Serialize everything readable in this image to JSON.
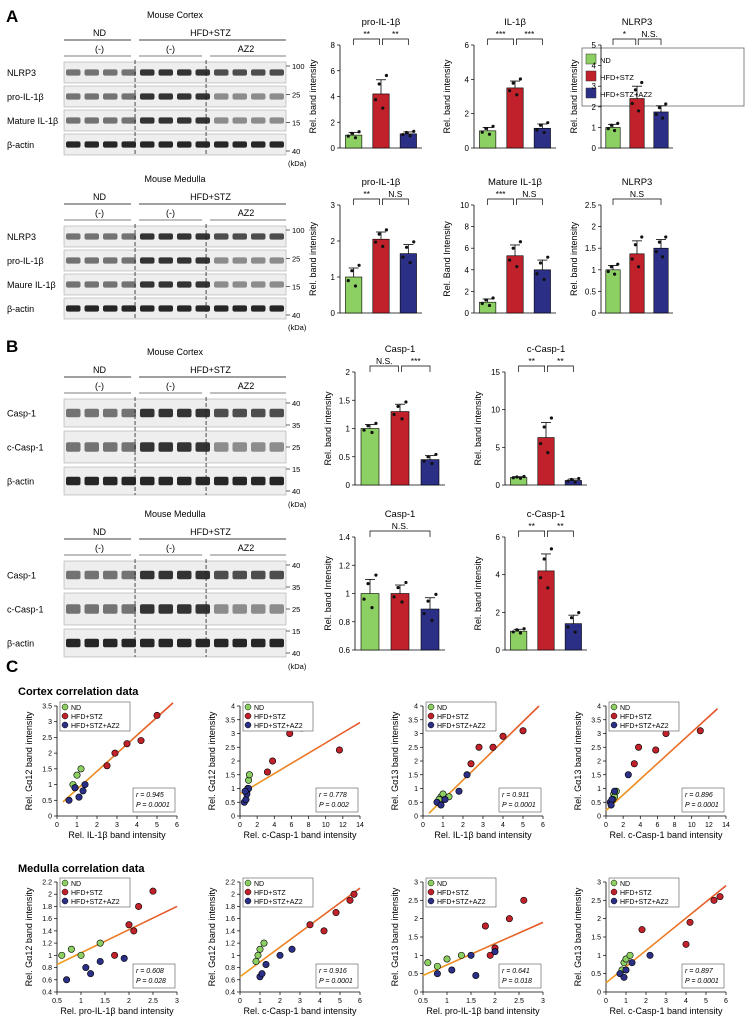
{
  "colors": {
    "nd": "#8ccf63",
    "hfd": "#c0212b",
    "az2": "#2b2f86",
    "fit": "#f0a020",
    "fit2": "#e4502a"
  },
  "panels": {
    "a": "A",
    "b": "B",
    "c": "C"
  },
  "blots": [
    {
      "title": "Mouse Cortex",
      "nd": "ND",
      "hfd": "HFD+STZ",
      "g1": "(-)",
      "g2": "(-)",
      "az2": "AZ2",
      "rows": [
        "NLRP3",
        "pro-IL-1β",
        "Mature IL-1β",
        "β-actin"
      ],
      "mw": [
        "100",
        "25",
        "15",
        "40"
      ],
      "unit": "(kDa)"
    },
    {
      "title": "Mouse Medulla",
      "nd": "ND",
      "hfd": "HFD+STZ",
      "g1": "(-)",
      "g2": "(-)",
      "az2": "AZ2",
      "rows": [
        "NLRP3",
        "pro-IL-1β",
        "Maure IL-1β",
        "β-actin"
      ],
      "mw": [
        "100",
        "25",
        "15",
        "40"
      ],
      "unit": "(kDa)"
    },
    {
      "title": "Mouse Cortex",
      "nd": "ND",
      "hfd": "HFD+STZ",
      "g1": "(-)",
      "g2": "(-)",
      "az2": "AZ2",
      "rows": [
        "Casp-1",
        "c-Casp-1",
        "β-actin"
      ],
      "mw": [
        "40",
        "35",
        "25",
        "15",
        "40"
      ],
      "unit": "(kDa)"
    },
    {
      "title": "Mouse Medulla",
      "nd": "ND",
      "hfd": "HFD+STZ",
      "g1": "(-)",
      "g2": "(-)",
      "az2": "AZ2",
      "rows": [
        "Casp-1",
        "c-Casp-1",
        "β-actin"
      ],
      "mw": [
        "40",
        "35",
        "25",
        "15",
        "40"
      ],
      "unit": "(kDa)"
    }
  ],
  "legend": [
    "ND",
    "HFD+STZ",
    "HFD+STZ+AZ2"
  ],
  "sections": {
    "cortex": "Cortex correlation data",
    "medulla": "Medulla correlation data"
  },
  "chart_data": [
    {
      "type": "bar",
      "title": "pro-IL-1β",
      "ylabel": "Rel. band intensity",
      "categories": [
        "ND",
        "HFD+STZ",
        "HFD+STZ+AZ2"
      ],
      "values": [
        1.0,
        4.2,
        1.1
      ],
      "errors": [
        0.2,
        1.1,
        0.15
      ],
      "ylim": [
        0,
        8
      ],
      "yticks": [
        0,
        2,
        4,
        6,
        8
      ],
      "sig": [
        "**",
        "**"
      ]
    },
    {
      "type": "bar",
      "title": "IL-1β",
      "ylabel": "Rel. band intensity",
      "categories": [
        "ND",
        "HFD+STZ",
        "HFD+STZ+AZ2"
      ],
      "values": [
        1.0,
        3.5,
        1.15
      ],
      "errors": [
        0.2,
        0.4,
        0.25
      ],
      "ylim": [
        0,
        6
      ],
      "yticks": [
        0,
        2,
        4,
        6
      ],
      "sig": [
        "***",
        "***"
      ]
    },
    {
      "type": "bar",
      "title": "NLRP3",
      "ylabel": "Rel. band intensity",
      "categories": [
        "ND",
        "HFD+STZ",
        "HFD+STZ+AZ2"
      ],
      "values": [
        1.0,
        2.4,
        1.75
      ],
      "errors": [
        0.15,
        0.6,
        0.3
      ],
      "ylim": [
        0,
        5
      ],
      "yticks": [
        0,
        1,
        2,
        3,
        4,
        5
      ],
      "sig": [
        "*",
        "N.S."
      ]
    },
    {
      "type": "bar",
      "title": "pro-IL-1β",
      "ylabel": "Rel. band intensity",
      "categories": [
        "ND",
        "HFD+STZ",
        "HFD+STZ+AZ2"
      ],
      "values": [
        1.0,
        2.05,
        1.65
      ],
      "errors": [
        0.25,
        0.2,
        0.25
      ],
      "ylim": [
        0,
        3
      ],
      "yticks": [
        0,
        1,
        2,
        3
      ],
      "sig": [
        "**",
        "N.S"
      ]
    },
    {
      "type": "bar",
      "title": "Mature IL-1β",
      "ylabel": "Rel. Band Intensity",
      "categories": [
        "ND",
        "HFD+STZ",
        "HFD+STZ+AZ2"
      ],
      "values": [
        1.0,
        5.3,
        4.0
      ],
      "errors": [
        0.3,
        1.0,
        0.9
      ],
      "ylim": [
        0,
        10
      ],
      "yticks": [
        0,
        2,
        4,
        6,
        8,
        10
      ],
      "sig": [
        "***",
        "N.S"
      ]
    },
    {
      "type": "bar",
      "title": "NLRP3",
      "ylabel": "Rel. band intensity",
      "categories": [
        "ND",
        "HFD+STZ",
        "HFD+STZ+AZ2"
      ],
      "values": [
        1.0,
        1.37,
        1.5
      ],
      "errors": [
        0.1,
        0.3,
        0.2
      ],
      "ylim": [
        0,
        2.5
      ],
      "yticks": [
        0.0,
        0.5,
        1.0,
        1.5,
        2.0,
        2.5
      ],
      "sig": [
        "N.S"
      ]
    },
    {
      "type": "bar",
      "title": "Casp-1",
      "ylabel": "Rel. band intensity",
      "categories": [
        "ND",
        "HFD+STZ",
        "HFD+STZ+AZ2"
      ],
      "values": [
        1.0,
        1.3,
        0.45
      ],
      "errors": [
        0.07,
        0.13,
        0.07
      ],
      "ylim": [
        0,
        2.0
      ],
      "yticks": [
        0.0,
        0.5,
        1.0,
        1.5,
        2.0
      ],
      "sig": [
        "N.S.",
        "***"
      ]
    },
    {
      "type": "bar",
      "title": "c-Casp-1",
      "ylabel": "Rel. band intensity",
      "categories": [
        "ND",
        "HFD+STZ",
        "HFD+STZ+AZ2"
      ],
      "values": [
        1.0,
        6.3,
        0.6
      ],
      "errors": [
        0.1,
        2.0,
        0.2
      ],
      "ylim": [
        0,
        15
      ],
      "yticks": [
        0,
        5,
        10,
        15
      ],
      "sig": [
        "**",
        "**"
      ]
    },
    {
      "type": "bar",
      "title": "Casp-1",
      "ylabel": "Rel. band Intensity",
      "categories": [
        "ND",
        "HFD+STZ",
        "HFD+STZ+AZ2"
      ],
      "values": [
        1.0,
        1.0,
        0.89
      ],
      "errors": [
        0.1,
        0.06,
        0.08
      ],
      "ylim": [
        0.6,
        1.4
      ],
      "yticks": [
        0.6,
        0.8,
        1.0,
        1.2,
        1.4
      ],
      "sig": [
        "N.S."
      ]
    },
    {
      "type": "bar",
      "title": "c-Casp-1",
      "ylabel": "Rel. band intensity",
      "categories": [
        "ND",
        "HFD+STZ",
        "HFD+STZ+AZ2"
      ],
      "values": [
        1.0,
        4.2,
        1.4
      ],
      "errors": [
        0.1,
        0.9,
        0.45
      ],
      "ylim": [
        0,
        6
      ],
      "yticks": [
        0,
        2,
        4,
        6
      ],
      "sig": [
        "**",
        "**"
      ]
    },
    {
      "type": "scatter",
      "xlabel": "Rel. IL-1β band intensity",
      "ylabel": "Rel. Gα12 band intensity",
      "xlim": [
        0,
        6
      ],
      "xticks": [
        0,
        1,
        2,
        3,
        4,
        5,
        6
      ],
      "ylim": [
        0,
        3.5
      ],
      "yticks": [
        0,
        0.5,
        1.0,
        1.5,
        2.0,
        2.5,
        3.0,
        3.5
      ],
      "r": "r = 0.945",
      "p": "P = 0.0001",
      "fit": [
        [
          0.3,
          0.45
        ],
        [
          5.8,
          3.6
        ]
      ],
      "series": [
        {
          "name": "ND",
          "x": [
            0.8,
            1.0,
            1.2,
            0.9
          ],
          "y": [
            1.0,
            1.3,
            1.5,
            0.9
          ]
        },
        {
          "name": "HFD+STZ",
          "x": [
            2.9,
            3.5,
            5.0,
            2.5,
            4.2
          ],
          "y": [
            2.0,
            2.3,
            3.2,
            1.6,
            2.4
          ]
        },
        {
          "name": "HFD+STZ+AZ2",
          "x": [
            0.6,
            1.1,
            1.4,
            1.3,
            0.9
          ],
          "y": [
            0.5,
            0.6,
            1.0,
            0.8,
            0.9
          ]
        }
      ]
    },
    {
      "type": "scatter",
      "xlabel": "Rel. c-Casp-1 band intensity",
      "ylabel": "Rel. Gα12 band intensity",
      "xlim": [
        0,
        14
      ],
      "xticks": [
        0,
        2,
        4,
        6,
        8,
        10,
        12,
        14
      ],
      "ylim": [
        0,
        4
      ],
      "yticks": [
        0,
        0.5,
        1.0,
        1.5,
        2.0,
        2.5,
        3.0,
        3.5,
        4.0
      ],
      "r": "r = 0.778",
      "p": "P = 0.002",
      "fit": [
        [
          0,
          0.8
        ],
        [
          14,
          3.4
        ]
      ],
      "series": [
        {
          "name": "ND",
          "x": [
            0.9,
            1.0,
            1.1,
            0.8
          ],
          "y": [
            1.0,
            1.3,
            1.5,
            0.9
          ]
        },
        {
          "name": "HFD+STZ",
          "x": [
            3.8,
            5.8,
            11.6,
            3.2,
            7.2
          ],
          "y": [
            2.0,
            3.0,
            2.4,
            1.6,
            3.2
          ]
        },
        {
          "name": "HFD+STZ+AZ2",
          "x": [
            0.5,
            0.7,
            1.0,
            0.8,
            0.6
          ],
          "y": [
            0.5,
            0.6,
            1.0,
            0.8,
            0.9
          ]
        }
      ]
    },
    {
      "type": "scatter",
      "xlabel": "Rel. IL-1β band intensity",
      "ylabel": "Rel. Gα13 band intensity",
      "xlim": [
        0,
        6
      ],
      "xticks": [
        0,
        1,
        2,
        3,
        4,
        5,
        6
      ],
      "ylim": [
        0,
        4
      ],
      "yticks": [
        0,
        0.5,
        1.0,
        1.5,
        2.0,
        2.5,
        3.0,
        3.5,
        4.0
      ],
      "r": "r = 0.911",
      "p": "P = 0.0001",
      "fit": [
        [
          0.3,
          0.1
        ],
        [
          5.8,
          4.0
        ]
      ],
      "series": [
        {
          "name": "ND",
          "x": [
            0.9,
            1.0,
            1.3,
            0.8
          ],
          "y": [
            0.7,
            0.8,
            0.7,
            0.6
          ]
        },
        {
          "name": "HFD+STZ",
          "x": [
            2.8,
            3.5,
            5.0,
            2.4,
            4.0
          ],
          "y": [
            2.5,
            2.5,
            3.1,
            1.9,
            2.9
          ]
        },
        {
          "name": "HFD+STZ+AZ2",
          "x": [
            0.7,
            1.1,
            1.8,
            2.2,
            0.9
          ],
          "y": [
            0.5,
            0.6,
            0.9,
            1.5,
            0.4
          ]
        }
      ]
    },
    {
      "type": "scatter",
      "xlabel": "Rel. c-Casp-1 band intensity",
      "ylabel": "Rel. Gα13 band intensity",
      "xlim": [
        0,
        14
      ],
      "xticks": [
        0,
        2,
        4,
        6,
        8,
        10,
        12,
        14
      ],
      "ylim": [
        0,
        4
      ],
      "yticks": [
        0,
        0.5,
        1.0,
        1.5,
        2.0,
        2.5,
        3.0,
        3.5,
        4.0
      ],
      "r": "r = 0.896",
      "p": "P = 0.0001",
      "fit": [
        [
          0,
          0.2
        ],
        [
          13,
          3.9
        ]
      ],
      "series": [
        {
          "name": "ND",
          "x": [
            0.9,
            1.0,
            1.2,
            0.8
          ],
          "y": [
            0.8,
            0.7,
            0.9,
            0.6
          ]
        },
        {
          "name": "HFD+STZ",
          "x": [
            3.8,
            5.8,
            11.0,
            3.3,
            7.0
          ],
          "y": [
            2.5,
            2.4,
            3.1,
            1.9,
            3.0
          ]
        },
        {
          "name": "HFD+STZ+AZ2",
          "x": [
            0.5,
            0.7,
            1.0,
            2.6,
            0.6
          ],
          "y": [
            0.5,
            0.6,
            0.9,
            1.5,
            0.4
          ]
        }
      ]
    },
    {
      "type": "scatter",
      "xlabel": "Rel. pro-IL-1β band intensity",
      "ylabel": "Rel. Gα12 band intensity",
      "xlim": [
        0.5,
        3.0
      ],
      "xticks": [
        0.5,
        1.0,
        1.5,
        2.0,
        2.5,
        3.0
      ],
      "ylim": [
        0.4,
        2.2
      ],
      "yticks": [
        0.4,
        0.6,
        0.8,
        1.0,
        1.2,
        1.4,
        1.6,
        1.8,
        2.0,
        2.2
      ],
      "r": "r = 0.608",
      "p": "P = 0.028",
      "fit": [
        [
          0.5,
          0.85
        ],
        [
          3.0,
          1.8
        ]
      ],
      "series": [
        {
          "name": "ND",
          "x": [
            0.6,
            0.8,
            1.0,
            1.4
          ],
          "y": [
            1.0,
            1.1,
            1.0,
            1.2
          ]
        },
        {
          "name": "HFD+STZ",
          "x": [
            1.7,
            2.2,
            2.0,
            2.5,
            2.1
          ],
          "y": [
            1.0,
            1.8,
            1.5,
            2.05,
            1.4
          ]
        },
        {
          "name": "HFD+STZ+AZ2",
          "x": [
            0.7,
            1.1,
            1.4,
            1.9,
            1.2
          ],
          "y": [
            0.6,
            0.8,
            0.9,
            0.95,
            0.7
          ]
        }
      ]
    },
    {
      "type": "scatter",
      "xlabel": "Rel. c-Casp-1 band intensity",
      "ylabel": "Rel. Gα12 band intensity",
      "xlim": [
        0,
        6
      ],
      "xticks": [
        0,
        1,
        2,
        3,
        4,
        5,
        6
      ],
      "ylim": [
        0.4,
        2.2
      ],
      "yticks": [
        0.4,
        0.6,
        0.8,
        1.0,
        1.2,
        1.4,
        1.6,
        1.8,
        2.0,
        2.2
      ],
      "r": "r = 0.916",
      "p": "P = 0.0001",
      "fit": [
        [
          0,
          0.65
        ],
        [
          6,
          2.1
        ]
      ],
      "series": [
        {
          "name": "ND",
          "x": [
            0.9,
            1.0,
            1.2,
            0.8
          ],
          "y": [
            1.0,
            1.1,
            1.2,
            0.9
          ]
        },
        {
          "name": "HFD+STZ",
          "x": [
            3.5,
            5.5,
            4.8,
            4.2,
            5.7
          ],
          "y": [
            1.5,
            1.9,
            1.7,
            1.4,
            2.0
          ]
        },
        {
          "name": "HFD+STZ+AZ2",
          "x": [
            1.0,
            1.3,
            2.0,
            2.6,
            1.1
          ],
          "y": [
            0.65,
            0.85,
            1.0,
            1.1,
            0.7
          ]
        }
      ]
    },
    {
      "type": "scatter",
      "xlabel": "Rel. pro-IL-1β band intensity",
      "ylabel": "Rel. Gα13 band intensity",
      "xlim": [
        0.5,
        3.0
      ],
      "xticks": [
        0.5,
        1.0,
        1.5,
        2.0,
        2.5,
        3.0
      ],
      "ylim": [
        0,
        3.0
      ],
      "yticks": [
        0,
        0.5,
        1.0,
        1.5,
        2.0,
        2.5,
        3.0
      ],
      "r": "r = 0.641",
      "p": "P = 0.018",
      "fit": [
        [
          0.5,
          0.45
        ],
        [
          3.0,
          1.9
        ]
      ],
      "series": [
        {
          "name": "ND",
          "x": [
            0.6,
            0.8,
            1.0,
            1.3
          ],
          "y": [
            0.8,
            0.7,
            0.9,
            1.0
          ]
        },
        {
          "name": "HFD+STZ",
          "x": [
            1.8,
            2.6,
            2.3,
            2.0,
            1.9
          ],
          "y": [
            1.8,
            2.5,
            2.0,
            1.2,
            1.0
          ]
        },
        {
          "name": "HFD+STZ+AZ2",
          "x": [
            0.8,
            1.5,
            2.0,
            1.1,
            1.6
          ],
          "y": [
            0.5,
            1.0,
            1.1,
            0.6,
            0.45
          ]
        }
      ]
    },
    {
      "type": "scatter",
      "xlabel": "Rel. c-Casp-1 band intensity",
      "ylabel": "Rel. Gα13 band intensity",
      "xlim": [
        0,
        6
      ],
      "xticks": [
        0,
        1,
        2,
        3,
        4,
        5,
        6
      ],
      "ylim": [
        0,
        3.0
      ],
      "yticks": [
        0,
        0.5,
        1.0,
        1.5,
        2.0,
        2.5,
        3.0
      ],
      "r": "r = 0.897",
      "p": "P = 0.0001",
      "fit": [
        [
          0,
          0.25
        ],
        [
          6,
          2.9
        ]
      ],
      "series": [
        {
          "name": "ND",
          "x": [
            0.9,
            1.0,
            1.2,
            0.8
          ],
          "y": [
            0.8,
            0.9,
            1.0,
            0.6
          ]
        },
        {
          "name": "HFD+STZ",
          "x": [
            1.8,
            4.0,
            5.4,
            5.7,
            4.2
          ],
          "y": [
            1.7,
            1.3,
            2.5,
            2.6,
            1.9
          ]
        },
        {
          "name": "HFD+STZ+AZ2",
          "x": [
            0.7,
            1.0,
            1.3,
            2.2,
            0.9
          ],
          "y": [
            0.5,
            0.6,
            0.8,
            1.0,
            0.4
          ]
        }
      ]
    }
  ]
}
